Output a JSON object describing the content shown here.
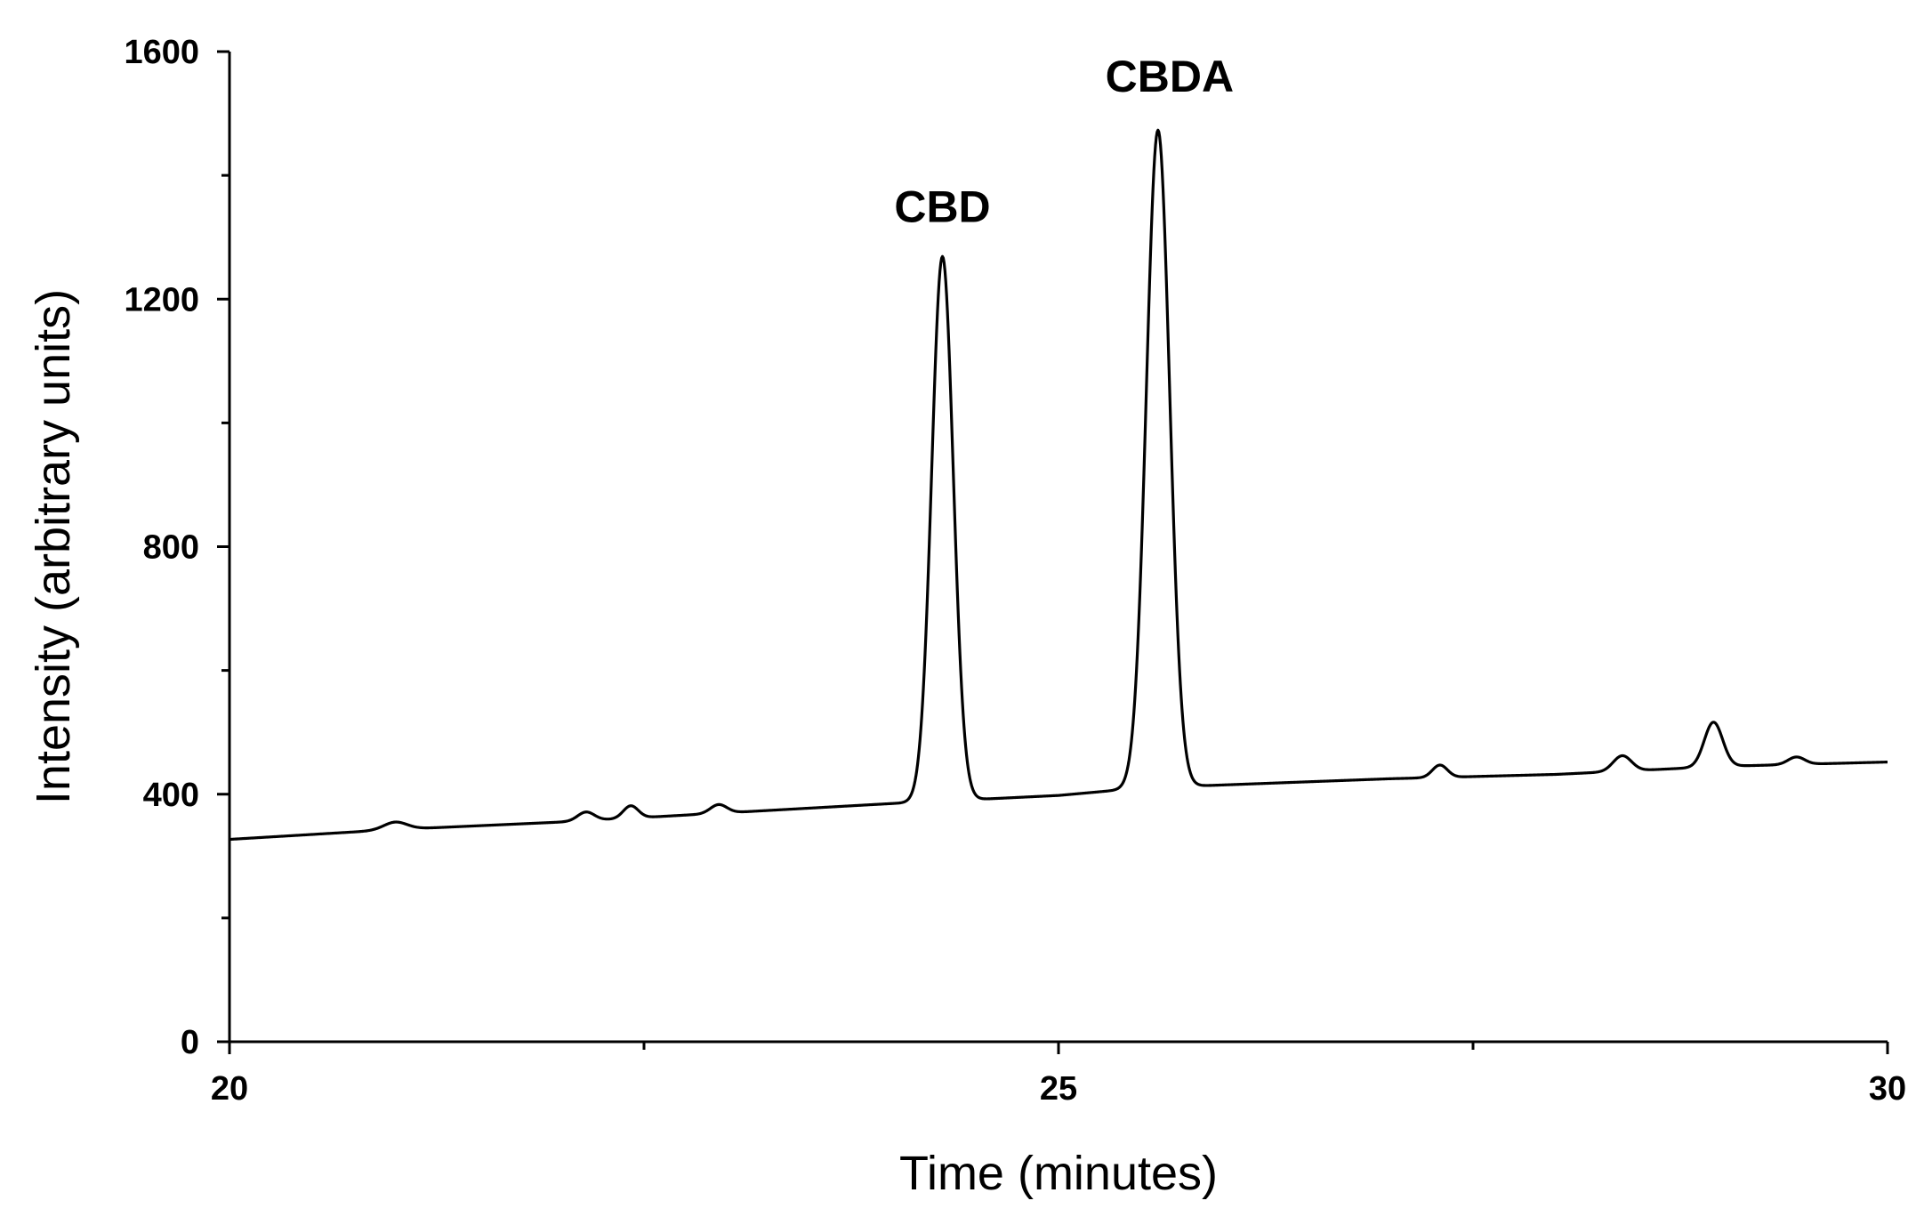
{
  "chart_data": {
    "type": "line",
    "title": "",
    "xlabel": "Time (minutes)",
    "ylabel": "Intensity (arbitrary units)",
    "xlim": [
      20,
      30
    ],
    "ylim": [
      0,
      1600
    ],
    "x_major_ticks": [
      20,
      25,
      30
    ],
    "x_minor_ticks": [
      22.5,
      27.5
    ],
    "y_major_ticks": [
      0,
      400,
      800,
      1200,
      1600
    ],
    "y_minor_ticks": [
      200,
      600,
      1000,
      1400
    ],
    "x_tick_labels": [
      "20",
      "25",
      "30"
    ],
    "y_tick_labels": [
      "0",
      "400",
      "800",
      "1200",
      "1600"
    ],
    "grid": false,
    "legend": "none",
    "color": "#000000",
    "series": [
      {
        "baseline": [
          [
            20.0,
            327
          ],
          [
            21.0,
            343
          ],
          [
            22.0,
            355
          ],
          [
            23.0,
            370
          ],
          [
            24.0,
            385
          ],
          [
            25.0,
            398
          ],
          [
            25.5,
            410
          ],
          [
            26.0,
            415
          ],
          [
            27.0,
            425
          ],
          [
            28.0,
            432
          ],
          [
            29.0,
            445
          ],
          [
            30.0,
            452
          ]
        ],
        "peaks": [
          {
            "x": 21.0,
            "height": 12,
            "width": 0.07
          },
          {
            "x": 22.15,
            "height": 14,
            "width": 0.05
          },
          {
            "x": 22.42,
            "height": 20,
            "width": 0.045
          },
          {
            "x": 22.95,
            "height": 14,
            "width": 0.05
          },
          {
            "x": 24.3,
            "height": 880,
            "width": 0.065
          },
          {
            "x": 25.6,
            "height": 1062,
            "width": 0.07
          },
          {
            "x": 27.3,
            "height": 20,
            "width": 0.045
          },
          {
            "x": 28.4,
            "height": 25,
            "width": 0.055
          },
          {
            "x": 28.95,
            "height": 72,
            "width": 0.055
          },
          {
            "x": 29.45,
            "height": 12,
            "width": 0.05
          }
        ]
      }
    ],
    "annotations": [
      {
        "text": "CBD",
        "x": 24.3,
        "y": 1325
      },
      {
        "text": "CBDA",
        "x": 25.67,
        "y": 1535
      }
    ]
  }
}
